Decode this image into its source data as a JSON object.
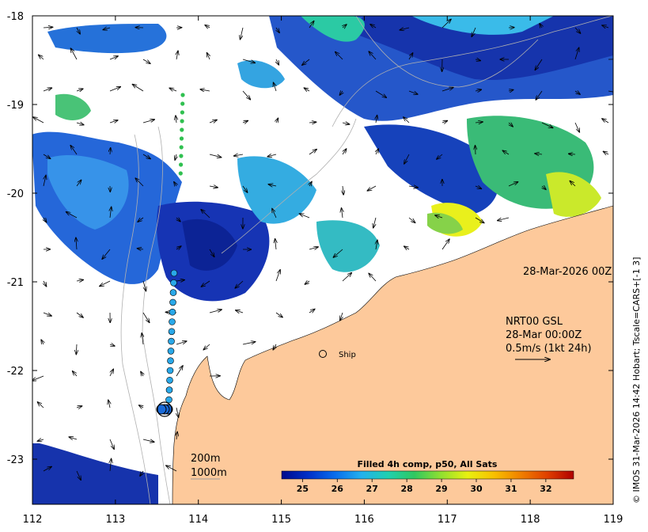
{
  "map": {
    "x_ticks": [
      "112",
      "113",
      "114",
      "115",
      "116",
      "117",
      "118",
      "119"
    ],
    "y_ticks": [
      "-18",
      "-19",
      "-20",
      "-21",
      "-22",
      "-23"
    ],
    "land_color": "#fdc99b",
    "timestamp_label": "28-Mar-2026 00Z",
    "current_legend": {
      "line1": "NRT00 GSL",
      "line2": "28-Mar 00:00Z",
      "line3": "0.5m/s (1kt 24h)"
    },
    "ship_label": "Ship",
    "depth_contours": {
      "label_200": "200m",
      "label_1000": "1000m"
    },
    "credit": "© IMOS 31-Mar-2026 14:42 Hobart; Tscale=CARS+[-1 3]"
  },
  "colorbar": {
    "title": "Filled 4h comp, p50, All Sats",
    "ticks": [
      "25",
      "26",
      "27",
      "28",
      "29",
      "30",
      "31",
      "32"
    ],
    "colors": [
      "#000a8c",
      "#0030c8",
      "#0a6cec",
      "#22b0ee",
      "#20d0b0",
      "#30c860",
      "#90e030",
      "#e8f010",
      "#f8c000",
      "#f08000",
      "#e04000",
      "#b00000"
    ]
  }
}
